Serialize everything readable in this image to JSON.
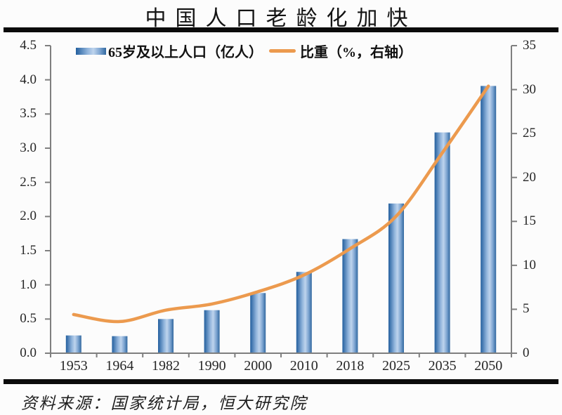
{
  "title": "中国人口老龄化加快",
  "source_note": "资料来源：国家统计局，恒大研究院",
  "legend": {
    "bar_label": "65岁及以上人口（亿人）",
    "line_label": "比重（%，右轴）"
  },
  "colors": {
    "bar_edge_dark": "#235f9e",
    "bar_center_light": "#bed4ed",
    "bar_edge_right": "#31689f",
    "line": "#ec9a4e",
    "axis": "#7f7f7f",
    "rule": "#0b0b0b",
    "text": "#262626"
  },
  "chart_data": {
    "type": "bar",
    "subtype": "dual-axis bar + line combo",
    "title": "中国人口老龄化加快",
    "categories": [
      "1953",
      "1964",
      "1982",
      "1990",
      "2000",
      "2010",
      "2018",
      "2025",
      "2035",
      "2050"
    ],
    "series": [
      {
        "name": "65岁及以上人口（亿人）",
        "type": "bar",
        "axis": "left",
        "unit": "亿人",
        "values": [
          0.26,
          0.25,
          0.5,
          0.63,
          0.88,
          1.19,
          1.67,
          2.19,
          3.23,
          3.91
        ]
      },
      {
        "name": "比重（%，右轴）",
        "type": "line",
        "axis": "right",
        "unit": "%",
        "values": [
          4.4,
          3.6,
          4.9,
          5.6,
          7.0,
          8.9,
          11.9,
          15.6,
          22.8,
          30.4
        ]
      }
    ],
    "left_axis": {
      "min": 0,
      "max": 4.5,
      "step": 0.5,
      "tick_labels": [
        "0.0",
        "0.5",
        "1.0",
        "1.5",
        "2.0",
        "2.5",
        "3.0",
        "3.5",
        "4.0",
        "4.5"
      ]
    },
    "right_axis": {
      "min": 0,
      "max": 35,
      "step": 5,
      "tick_labels": [
        "0",
        "5",
        "10",
        "15",
        "20",
        "25",
        "30",
        "35"
      ]
    },
    "grid": false,
    "legend_position": "top"
  }
}
